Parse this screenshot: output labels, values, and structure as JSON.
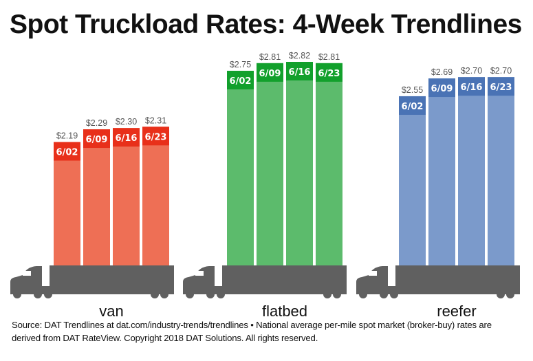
{
  "title": "Spot Truckload Rates: 4-Week Trendlines",
  "chart_data": {
    "type": "bar",
    "title": "Spot Truckload Rates: 4-Week Trendlines",
    "categories": [
      "6/02",
      "6/09",
      "6/16",
      "6/23"
    ],
    "groups": [
      {
        "name": "van",
        "values": [
          2.19,
          2.29,
          2.3,
          2.31
        ],
        "labels": [
          "$2.19",
          "$2.29",
          "$2.30",
          "$2.31"
        ],
        "color": "#EE6F55",
        "cap_color": "#E8301A"
      },
      {
        "name": "flatbed",
        "values": [
          2.75,
          2.81,
          2.82,
          2.81
        ],
        "labels": [
          "$2.75",
          "$2.81",
          "$2.82",
          "$2.81"
        ],
        "color": "#5CBB6C",
        "cap_color": "#12A02C"
      },
      {
        "name": "reefer",
        "values": [
          2.55,
          2.69,
          2.7,
          2.7
        ],
        "labels": [
          "$2.55",
          "$2.69",
          "$2.70",
          "$2.70"
        ],
        "color": "#7B9ACB",
        "cap_color": "#4A73B5"
      }
    ],
    "axes_visible": false,
    "grid": false,
    "truck_color": "#606060"
  },
  "footnote": {
    "line1": "Source: DAT Trendlines at dat.com/industry-trends/trendlines • National average per-mile spot market (broker-buy) rates are",
    "line2": "derived from DAT RateView. Copyright 2018 DAT Solutions. All rights reserved."
  }
}
